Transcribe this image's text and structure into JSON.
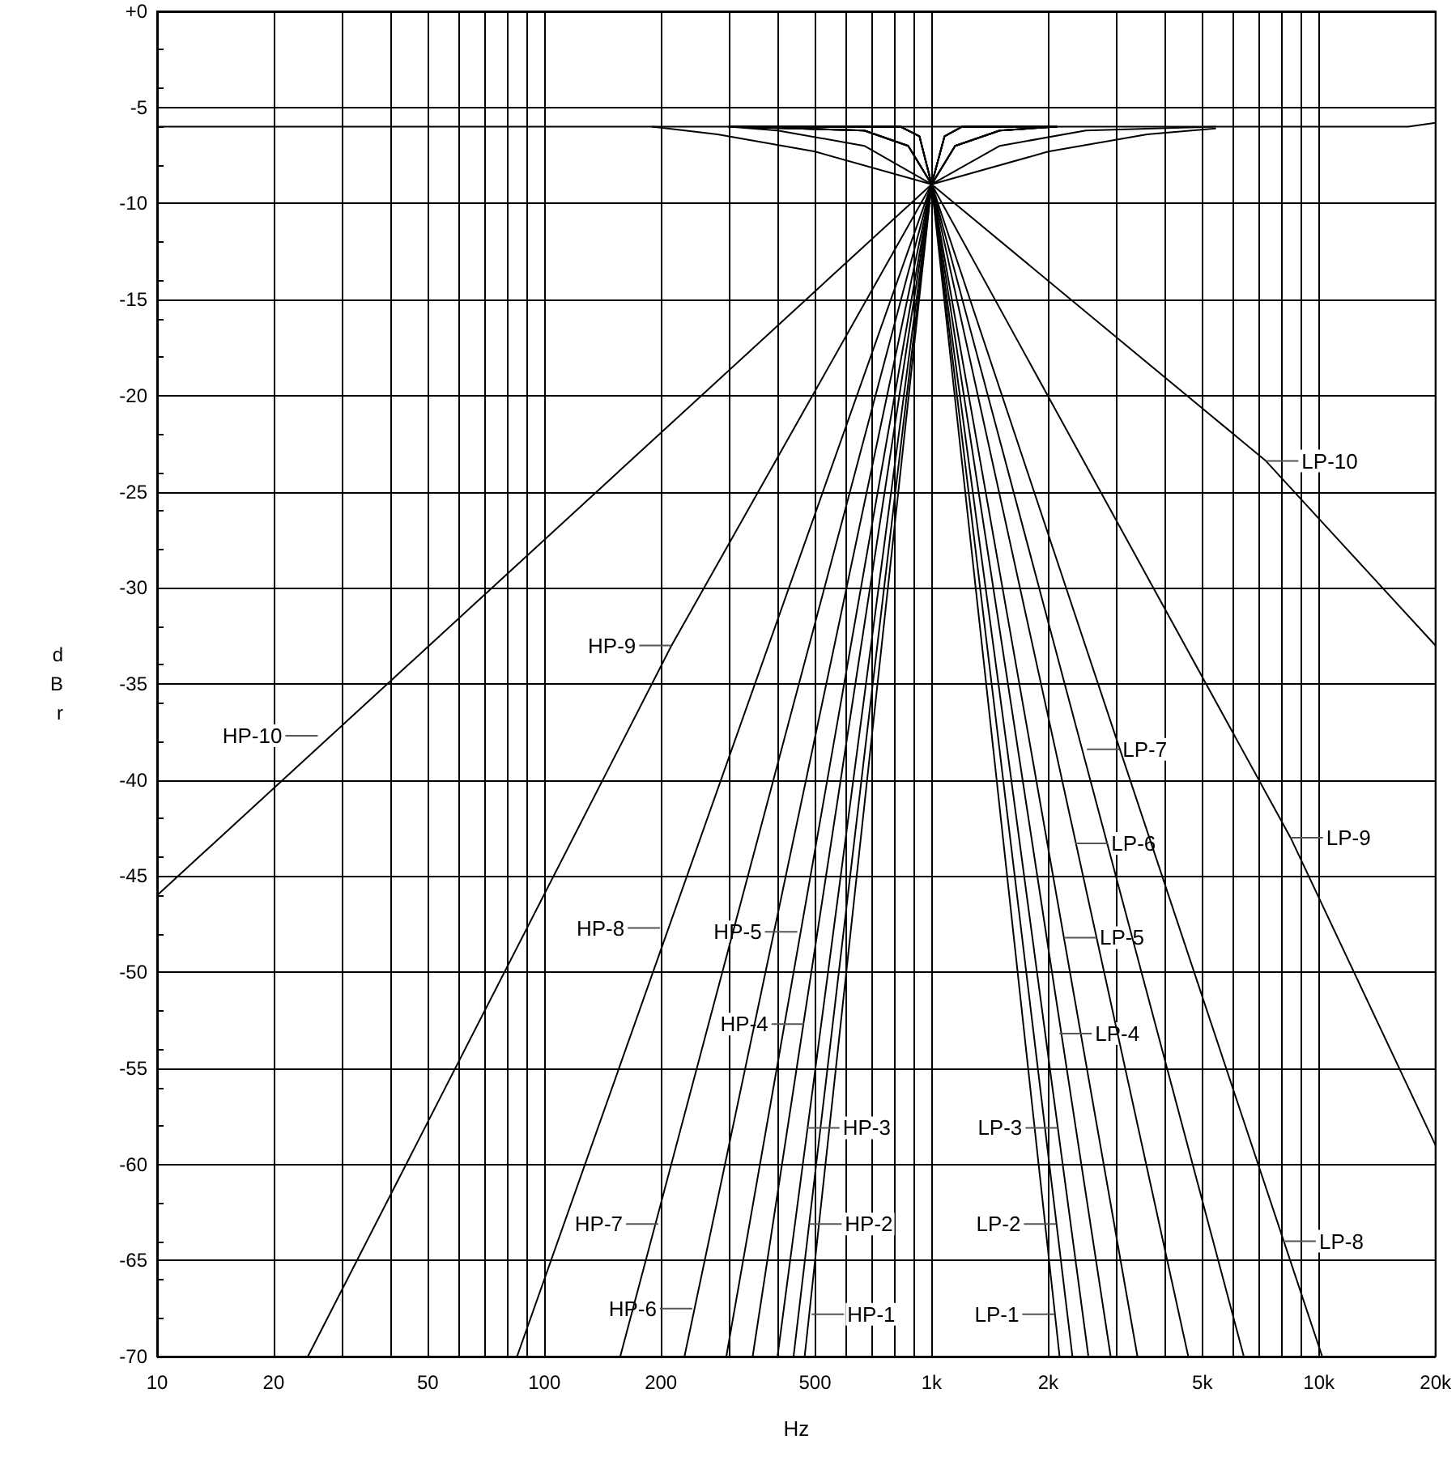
{
  "chart_data": {
    "type": "line",
    "xlabel": "Hz",
    "ylabel": "dBr",
    "log": "x",
    "grid": true,
    "marker": "none",
    "line_style": "solid",
    "xlim": [
      10,
      20000
    ],
    "ylim": [
      -70,
      0
    ],
    "xticks": [
      {
        "value": 10,
        "label": "10"
      },
      {
        "value": 20,
        "label": "20"
      },
      {
        "value": 30,
        "label": null
      },
      {
        "value": 40,
        "label": null
      },
      {
        "value": 50,
        "label": "50"
      },
      {
        "value": 60,
        "label": null
      },
      {
        "value": 70,
        "label": null
      },
      {
        "value": 80,
        "label": null
      },
      {
        "value": 90,
        "label": null
      },
      {
        "value": 100,
        "label": "100"
      },
      {
        "value": 200,
        "label": "200"
      },
      {
        "value": 300,
        "label": null
      },
      {
        "value": 400,
        "label": null
      },
      {
        "value": 500,
        "label": "500"
      },
      {
        "value": 600,
        "label": null
      },
      {
        "value": 700,
        "label": null
      },
      {
        "value": 800,
        "label": null
      },
      {
        "value": 900,
        "label": null
      },
      {
        "value": 1000,
        "label": "1k"
      },
      {
        "value": 2000,
        "label": "2k"
      },
      {
        "value": 3000,
        "label": null
      },
      {
        "value": 4000,
        "label": null
      },
      {
        "value": 5000,
        "label": "5k"
      },
      {
        "value": 6000,
        "label": null
      },
      {
        "value": 7000,
        "label": null
      },
      {
        "value": 8000,
        "label": null
      },
      {
        "value": 9000,
        "label": null
      },
      {
        "value": 10000,
        "label": "10k"
      },
      {
        "value": 20000,
        "label": "20k"
      }
    ],
    "yticks": [
      {
        "value": 0,
        "label": "+0"
      },
      -5,
      -10,
      -15,
      -20,
      -25,
      -30,
      -35,
      -40,
      -45,
      -50,
      -55,
      -60,
      -65,
      -70
    ],
    "series": [
      {
        "color": "#000000",
        "x": [
          470,
          1000,
          1080,
          1200,
          2100
        ],
        "values": [
          -70,
          -9,
          -6.5,
          -6,
          -6
        ]
      },
      {
        "color": "#000000",
        "x": [
          440,
          1000,
          1080,
          1200,
          2100
        ],
        "values": [
          -70,
          -9,
          -6.5,
          -6,
          -6
        ]
      },
      {
        "color": "#000000",
        "x": [
          400,
          1000,
          1080,
          1200,
          2100
        ],
        "values": [
          -70,
          -9,
          -6.5,
          -6,
          -6
        ]
      },
      {
        "color": "#000000",
        "x": [
          345,
          1000,
          1080,
          1200,
          2100
        ],
        "values": [
          -70,
          -9,
          -6.5,
          -6,
          -6
        ]
      },
      {
        "color": "#000000",
        "x": [
          295,
          1000,
          1150,
          1500,
          2100
        ],
        "values": [
          -70,
          -9,
          -7,
          -6.2,
          -6
        ]
      },
      {
        "color": "#000000",
        "x": [
          230,
          1000,
          1150,
          1500,
          2100
        ],
        "values": [
          -70,
          -9,
          -7,
          -6.2,
          -6
        ]
      },
      {
        "color": "#000000",
        "x": [
          157,
          1000,
          1150,
          1500,
          2100
        ],
        "values": [
          -70,
          -9,
          -7,
          -6.2,
          -6
        ]
      },
      {
        "color": "#000000",
        "x": [
          85,
          1000,
          1150,
          1500,
          2100
        ],
        "values": [
          -70,
          -9,
          -7,
          -6.2,
          -6
        ]
      },
      {
        "color": "#000000",
        "x": [
          24.5,
          213,
          1000,
          1500,
          2500,
          5400
        ],
        "values": [
          -70,
          -33,
          -9,
          -7,
          -6.2,
          -6
        ]
      },
      {
        "color": "#000000",
        "x": [
          10,
          1000,
          2000,
          3600,
          5400
        ],
        "values": [
          -46,
          -9,
          -7.3,
          -6.4,
          -6.1
        ]
      },
      {
        "color": "#000000",
        "x": [
          300,
          830,
          930,
          1000,
          2140
        ],
        "values": [
          -6,
          -6,
          -6.5,
          -9,
          -70
        ]
      },
      {
        "color": "#000000",
        "x": [
          300,
          830,
          930,
          1000,
          2310
        ],
        "values": [
          -6,
          -6,
          -6.5,
          -9,
          -70
        ]
      },
      {
        "color": "#000000",
        "x": [
          300,
          830,
          930,
          1000,
          2540
        ],
        "values": [
          -6,
          -6,
          -6.5,
          -9,
          -70
        ]
      },
      {
        "color": "#000000",
        "x": [
          300,
          830,
          930,
          1000,
          2900
        ],
        "values": [
          -6,
          -6,
          -6.5,
          -9,
          -70
        ]
      },
      {
        "color": "#000000",
        "x": [
          300,
          670,
          870,
          1000,
          3400
        ],
        "values": [
          -6,
          -6.2,
          -7,
          -9,
          -70
        ]
      },
      {
        "color": "#000000",
        "x": [
          300,
          670,
          870,
          1000,
          4600
        ],
        "values": [
          -6,
          -6.2,
          -7,
          -9,
          -70
        ]
      },
      {
        "color": "#000000",
        "x": [
          300,
          670,
          870,
          1000,
          6400
        ],
        "values": [
          -6,
          -6.2,
          -7,
          -9,
          -70
        ]
      },
      {
        "color": "#000000",
        "x": [
          300,
          670,
          870,
          1000,
          10200
        ],
        "values": [
          -6,
          -6.2,
          -7,
          -9,
          -70
        ]
      },
      {
        "color": "#000000",
        "x": [
          300,
          400,
          670,
          1000,
          8450,
          20000
        ],
        "values": [
          -6,
          -6.2,
          -7,
          -9,
          -43,
          -59
        ]
      },
      {
        "color": "#000000",
        "x": [
          190,
          280,
          500,
          1000,
          7300,
          20000
        ],
        "values": [
          -6,
          -6.4,
          -7.3,
          -9,
          -23.4,
          -33
        ]
      },
      {
        "color": "#000000",
        "x": [
          10,
          17000,
          20000
        ],
        "values": [
          -6,
          -6,
          -5.8
        ]
      }
    ],
    "annotations": [
      {
        "text": "HP-10",
        "x": 26,
        "y": -37.7
      },
      {
        "text": "HP-9",
        "x": 213,
        "y": -33
      },
      {
        "text": "HP-8",
        "x": 199,
        "y": -47.7
      },
      {
        "text": "HP-7",
        "x": 197,
        "y": -63.1
      },
      {
        "text": "HP-6",
        "x": 241,
        "y": -67.5
      },
      {
        "text": "HP-5",
        "x": 450,
        "y": -47.9
      },
      {
        "text": "HP-4",
        "x": 468,
        "y": -52.7
      },
      {
        "text": "HP-3",
        "x": 477,
        "y": -58.1
      },
      {
        "text": "HP-2",
        "x": 483,
        "y": -63.1
      },
      {
        "text": "HP-1",
        "x": 490,
        "y": -67.8
      },
      {
        "text": "LP-10",
        "x": 7300,
        "y": -23.4
      },
      {
        "text": "LP-9",
        "x": 8450,
        "y": -43
      },
      {
        "text": "LP-8",
        "x": 8100,
        "y": -64
      },
      {
        "text": "LP-7",
        "x": 2518,
        "y": -38.4
      },
      {
        "text": "LP-6",
        "x": 2355,
        "y": -43.3
      },
      {
        "text": "LP-5",
        "x": 2198,
        "y": -48.2
      },
      {
        "text": "LP-4",
        "x": 2138,
        "y": -53.2
      },
      {
        "text": "LP-3",
        "x": 2118,
        "y": -58.1
      },
      {
        "text": "LP-2",
        "x": 2098,
        "y": -63.1
      },
      {
        "text": "LP-1",
        "x": 2078,
        "y": -67.8
      }
    ]
  }
}
